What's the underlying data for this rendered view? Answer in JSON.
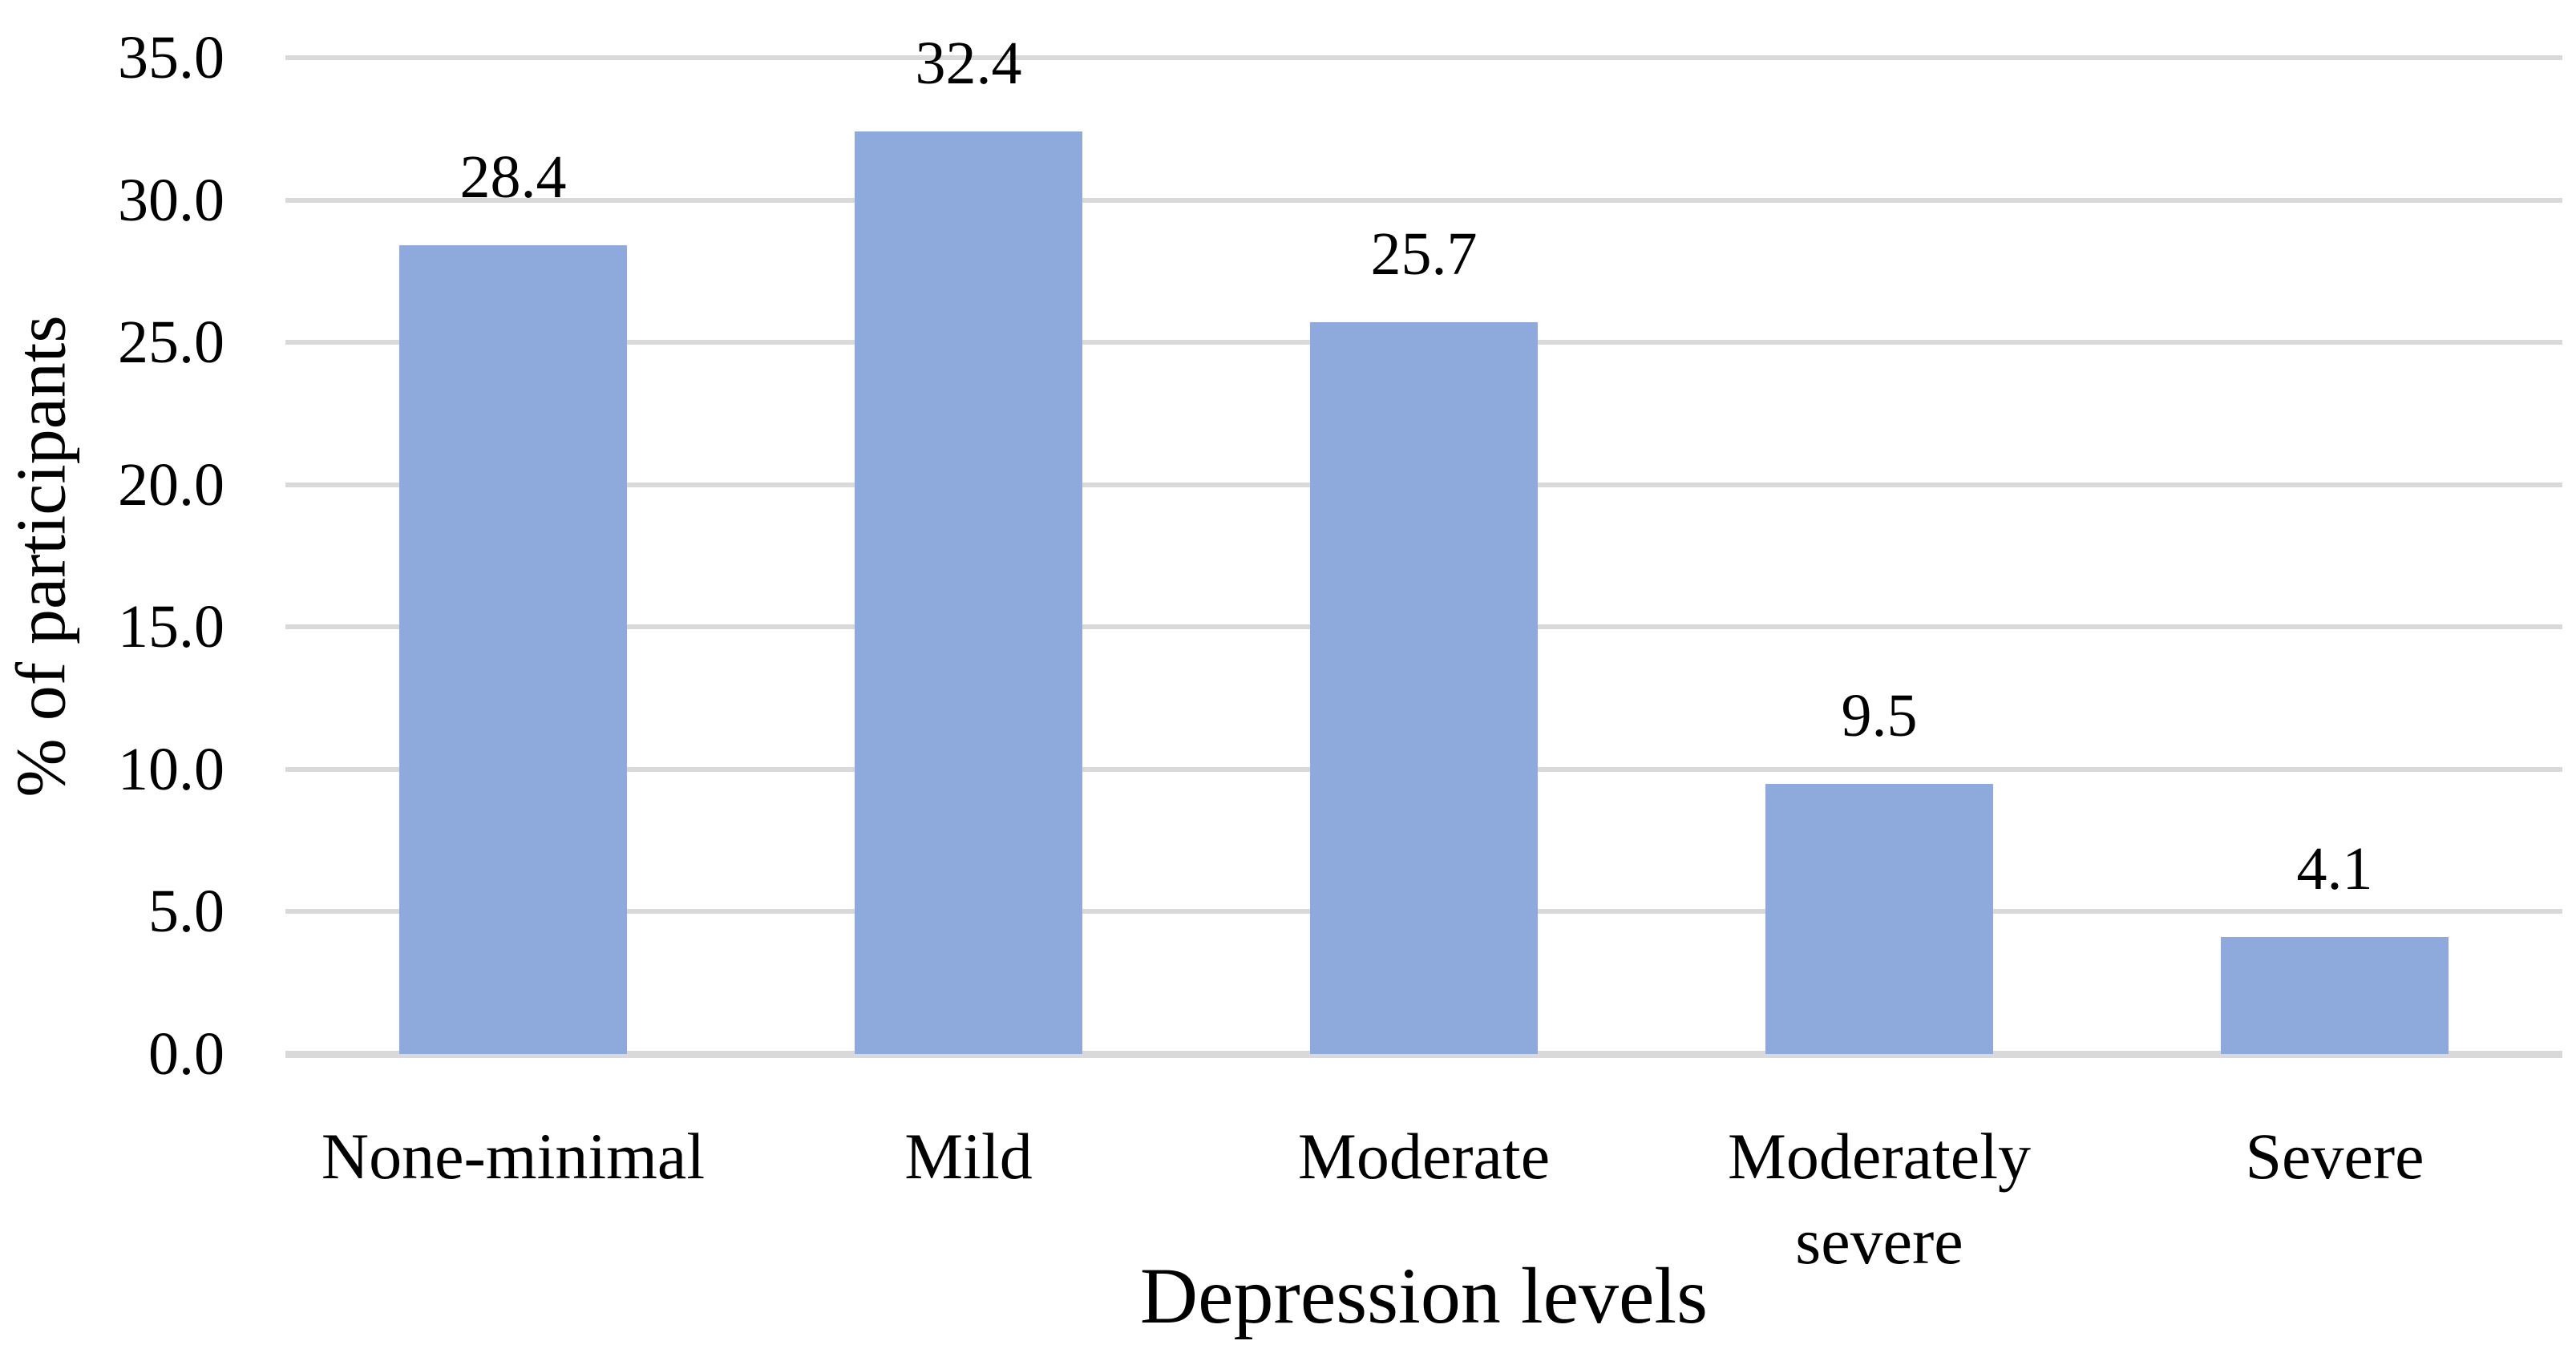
{
  "chart_data": {
    "type": "bar",
    "title": "",
    "categories": [
      "None-minimal",
      "Mild",
      "Moderate",
      "Moderately severe",
      "Severe"
    ],
    "values": [
      28.4,
      32.4,
      25.7,
      9.5,
      4.1
    ],
    "data_labels": [
      "28.4",
      "32.4",
      "25.7",
      "9.5",
      "4.1"
    ],
    "xlabel": "Depression levels",
    "ylabel": "% of participants",
    "ylim": [
      0,
      35
    ],
    "ytick_step": 5,
    "ytick_labels": [
      "0.0",
      "5.0",
      "10.0",
      "15.0",
      "20.0",
      "25.0",
      "30.0",
      "35.0"
    ],
    "grid": true,
    "legend_position": "none",
    "colors": {
      "bar_fill": "#8EA9DC",
      "gridline": "#D9D9D9",
      "axis_line": "#D9D9D9",
      "text": "#000000",
      "background": "#FFFFFF"
    }
  }
}
